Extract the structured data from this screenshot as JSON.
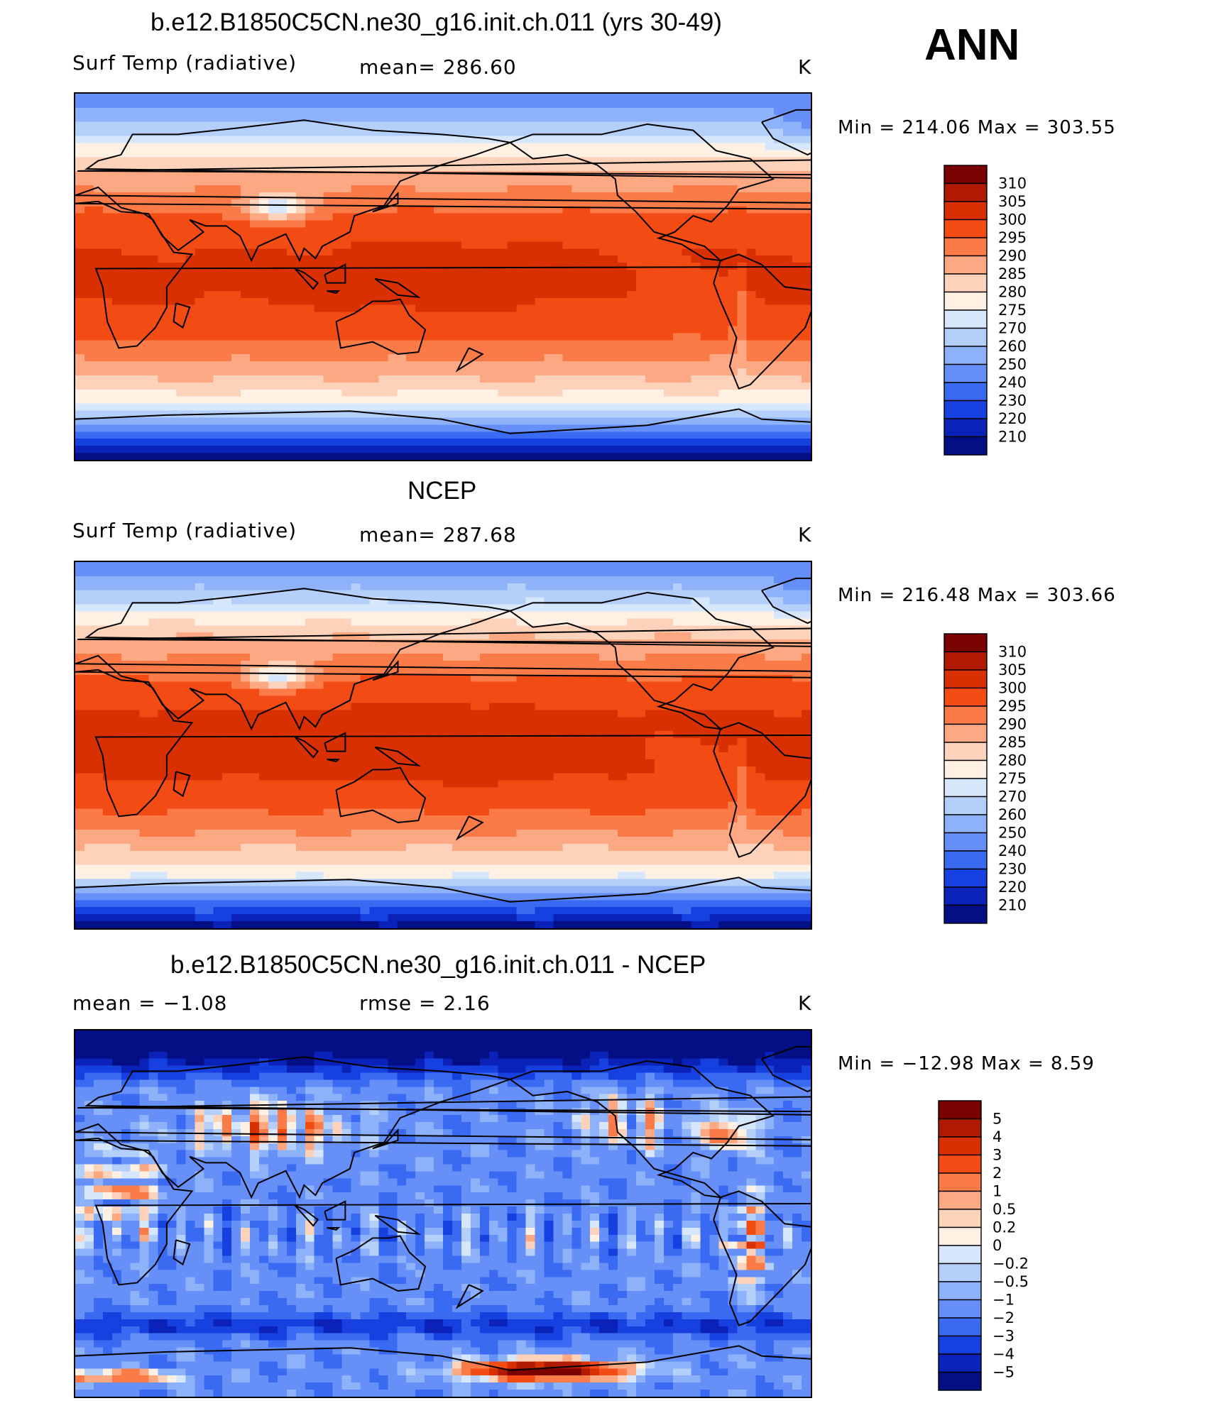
{
  "season": "ANN",
  "panels": [
    {
      "id": "model",
      "title": "b.e12.B1850C5CN.ne30_g16.init.ch.011 (yrs 30-49)",
      "left_label": "Surf Temp (radiative)",
      "center_label": "mean=  286.60",
      "units": "K",
      "minmax": "Min  =  214.06  Max  =  303.55"
    },
    {
      "id": "obs",
      "title": "NCEP",
      "left_label": "Surf Temp (radiative)",
      "center_label": "mean=  287.68",
      "units": "K",
      "minmax": "Min  =  216.48  Max  =  303.66"
    },
    {
      "id": "diff",
      "title": "b.e12.B1850C5CN.ne30_g16.init.ch.011 - NCEP",
      "left_label": "mean  =     −1.08",
      "center_label": "rmse  =     2.16",
      "units": "K",
      "minmax": "Min  =  −12.98  Max  =      8.59"
    }
  ],
  "chart_data": [
    {
      "type": "heatmap",
      "title": "b.e12.B1850C5CN.ne30_g16.init.ch.011 (yrs 30-49)",
      "variable": "Surf Temp (radiative)",
      "units": "K",
      "mean": 286.6,
      "min": 214.06,
      "max": 303.55,
      "colorbar_levels": [
        310,
        305,
        300,
        295,
        290,
        285,
        280,
        275,
        270,
        260,
        250,
        240,
        230,
        220,
        210
      ],
      "colorbar_labels": [
        "310",
        "305",
        "300",
        "295",
        "290",
        "285",
        "280",
        "275",
        "270",
        "260",
        "250",
        "240",
        "230",
        "220",
        "210"
      ],
      "colors": [
        "#7b0000",
        "#b01a00",
        "#d83000",
        "#f24c14",
        "#fa7a48",
        "#fca882",
        "#fdd2ba",
        "#fff0e4",
        "#d6e6fb",
        "#b4cffa",
        "#8eb2fa",
        "#6690f8",
        "#3a6af2",
        "#1640e0",
        "#0a22b8",
        "#050f85"
      ]
    },
    {
      "type": "heatmap",
      "title": "NCEP",
      "variable": "Surf Temp (radiative)",
      "units": "K",
      "mean": 287.68,
      "min": 216.48,
      "max": 303.66,
      "colorbar_levels": [
        310,
        305,
        300,
        295,
        290,
        285,
        280,
        275,
        270,
        260,
        250,
        240,
        230,
        220,
        210
      ],
      "colorbar_labels": [
        "310",
        "305",
        "300",
        "295",
        "290",
        "285",
        "280",
        "275",
        "270",
        "260",
        "250",
        "240",
        "230",
        "220",
        "210"
      ],
      "colors": [
        "#7b0000",
        "#b01a00",
        "#d83000",
        "#f24c14",
        "#fa7a48",
        "#fca882",
        "#fdd2ba",
        "#fff0e4",
        "#d6e6fb",
        "#b4cffa",
        "#8eb2fa",
        "#6690f8",
        "#3a6af2",
        "#1640e0",
        "#0a22b8",
        "#050f85"
      ]
    },
    {
      "type": "heatmap",
      "title": "b.e12.B1850C5CN.ne30_g16.init.ch.011 - NCEP",
      "units": "K",
      "mean": -1.08,
      "rmse": 2.16,
      "min": -12.98,
      "max": 8.59,
      "colorbar_levels": [
        5,
        4,
        3,
        2,
        1,
        0.5,
        0.2,
        0,
        -0.2,
        -0.5,
        -1,
        -2,
        -3,
        -4,
        -5
      ],
      "colorbar_labels": [
        "5",
        "4",
        "3",
        "2",
        "1",
        "0.5",
        "0.2",
        "0",
        "−0.2",
        "−0.5",
        "−1",
        "−2",
        "−3",
        "−4",
        "−5"
      ],
      "colors": [
        "#7b0000",
        "#b01a00",
        "#d83000",
        "#f24c14",
        "#fa7a48",
        "#fca882",
        "#fdd2ba",
        "#fff0e4",
        "#d6e6fb",
        "#b4cffa",
        "#8eb2fa",
        "#6690f8",
        "#3a6af2",
        "#1640e0",
        "#0a22b8",
        "#050f85"
      ]
    }
  ]
}
